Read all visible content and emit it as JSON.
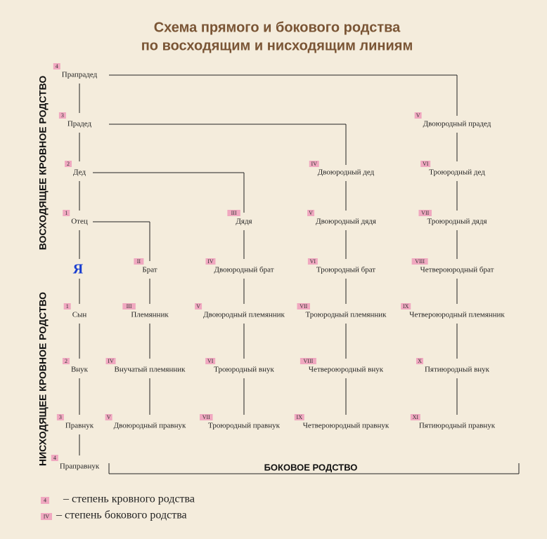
{
  "title": [
    "Схема прямого и бокового родства",
    "по восходящим и нисходящим линиям"
  ],
  "side_labels": [
    "ВОСХОДЯЩЕЕ КРОВНОЕ РОДСТВО",
    "НИСХОДЯЩЕЕ КРОВНОЕ РОДСТВО"
  ],
  "bottom_label": "БОКОВОЕ РОДСТВО",
  "nodes": [
    {
      "label": "Прапрадед",
      "degree": "4"
    },
    {
      "label": "Прадед",
      "degree": "3"
    },
    {
      "label": "Дед",
      "degree": "2"
    },
    {
      "label": "Отец",
      "degree": "1"
    },
    {
      "label": "Я"
    },
    {
      "label": "Сын",
      "degree": "1"
    },
    {
      "label": "Внук",
      "degree": "2"
    },
    {
      "label": "Правнук",
      "degree": "3"
    },
    {
      "label": "Праправнук",
      "degree": "4"
    },
    {
      "label": "Брат",
      "degree": "II"
    },
    {
      "label": "Племянник",
      "degree": "III"
    },
    {
      "label": "Внучатый племянник",
      "degree": "IV"
    },
    {
      "label": "Двоюродный правнук",
      "degree": "V"
    },
    {
      "label": "Дядя",
      "degree": "III"
    },
    {
      "label": "Двоюродный брат",
      "degree": "IV"
    },
    {
      "label": "Двоюродный племянник",
      "degree": "V"
    },
    {
      "label": "Троюродный внук",
      "degree": "VI"
    },
    {
      "label": "Троюродный правнук",
      "degree": "VII"
    },
    {
      "label": "Двоюродный дед",
      "degree": "IV"
    },
    {
      "label": "Двоюродный дядя",
      "degree": "V"
    },
    {
      "label": "Троюродный брат",
      "degree": "VI"
    },
    {
      "label": "Троюродный племянник",
      "degree": "VII"
    },
    {
      "label": "Четвероюродный внук",
      "degree": "VIII"
    },
    {
      "label": "Четвероюродный правнук",
      "degree": "IX"
    },
    {
      "label": "Двоюродный прадед",
      "degree": "V"
    },
    {
      "label": "Троюродный дед",
      "degree": "VI"
    },
    {
      "label": "Троюродный дядя",
      "degree": "VII"
    },
    {
      "label": "Четвероюродный брат",
      "degree": "VIII"
    },
    {
      "label": "Четвероюродный племянник",
      "degree": "IX"
    },
    {
      "label": "Пятиюродный внук",
      "degree": "X"
    },
    {
      "label": "Пятиюродный правнук",
      "degree": "XI"
    }
  ],
  "legend": [
    {
      "badge": "4",
      "text": "– степень кровного родства"
    },
    {
      "badge": "IV",
      "text": "– степень бокового родства"
    }
  ]
}
